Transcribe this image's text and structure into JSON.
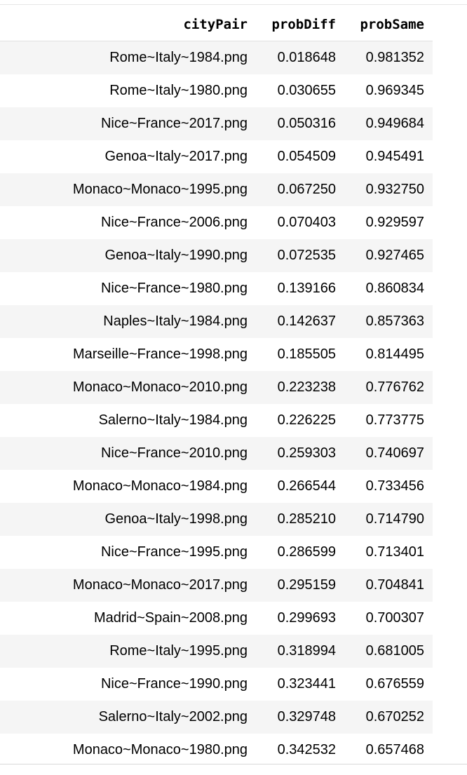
{
  "table": {
    "columns": [
      "cityPair",
      "probDiff",
      "probSame"
    ],
    "rows": [
      [
        "Rome~Italy~1984.png",
        "0.018648",
        "0.981352"
      ],
      [
        "Rome~Italy~1980.png",
        "0.030655",
        "0.969345"
      ],
      [
        "Nice~France~2017.png",
        "0.050316",
        "0.949684"
      ],
      [
        "Genoa~Italy~2017.png",
        "0.054509",
        "0.945491"
      ],
      [
        "Monaco~Monaco~1995.png",
        "0.067250",
        "0.932750"
      ],
      [
        "Nice~France~2006.png",
        "0.070403",
        "0.929597"
      ],
      [
        "Genoa~Italy~1990.png",
        "0.072535",
        "0.927465"
      ],
      [
        "Nice~France~1980.png",
        "0.139166",
        "0.860834"
      ],
      [
        "Naples~Italy~1984.png",
        "0.142637",
        "0.857363"
      ],
      [
        "Marseille~France~1998.png",
        "0.185505",
        "0.814495"
      ],
      [
        "Monaco~Monaco~2010.png",
        "0.223238",
        "0.776762"
      ],
      [
        "Salerno~Italy~1984.png",
        "0.226225",
        "0.773775"
      ],
      [
        "Nice~France~2010.png",
        "0.259303",
        "0.740697"
      ],
      [
        "Monaco~Monaco~1984.png",
        "0.266544",
        "0.733456"
      ],
      [
        "Genoa~Italy~1998.png",
        "0.285210",
        "0.714790"
      ],
      [
        "Nice~France~1995.png",
        "0.286599",
        "0.713401"
      ],
      [
        "Monaco~Monaco~2017.png",
        "0.295159",
        "0.704841"
      ],
      [
        "Madrid~Spain~2008.png",
        "0.299693",
        "0.700307"
      ],
      [
        "Rome~Italy~1995.png",
        "0.318994",
        "0.681005"
      ],
      [
        "Nice~France~1990.png",
        "0.323441",
        "0.676559"
      ],
      [
        "Salerno~Italy~2002.png",
        "0.329748",
        "0.670252"
      ],
      [
        "Monaco~Monaco~1980.png",
        "0.342532",
        "0.657468"
      ]
    ]
  },
  "colors": {
    "stripe": "#f5f5f5",
    "background": "#ffffff",
    "rule": "#e0e0e0"
  }
}
